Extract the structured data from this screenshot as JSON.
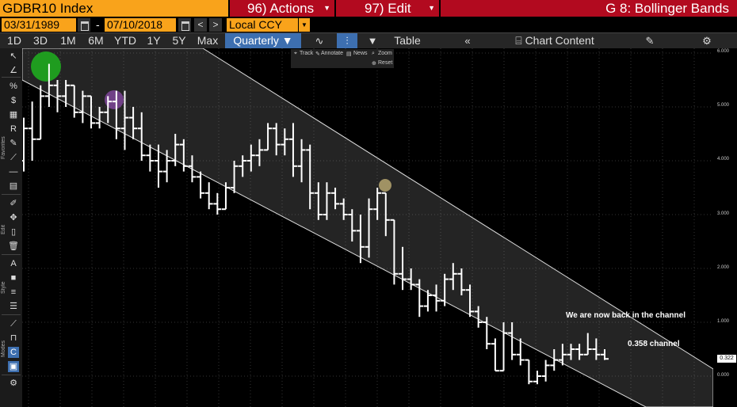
{
  "header": {
    "ticker": "GDBR10 Index",
    "actions_label": "96) Actions",
    "edit_label": "97) Edit",
    "graph_title": "G 8: Bollinger Bands"
  },
  "datebar": {
    "start_date": "03/31/1989",
    "end_date": "07/10/2018",
    "currency": "Local CCY"
  },
  "toolbar": {
    "ranges": [
      "1D",
      "3D",
      "1M",
      "6M",
      "YTD",
      "1Y",
      "5Y",
      "Max"
    ],
    "frequency": "Quarterly",
    "table_label": "Table",
    "chart_content_label": "Chart Content"
  },
  "mini_toolbar": {
    "track": "Track",
    "annotate": "Annotate",
    "news": "News",
    "zoom": "Zoom",
    "reset": "Reset"
  },
  "left_strip": {
    "labels": [
      "Favorites",
      "Edit",
      "Style",
      "Modes"
    ]
  },
  "annotations": {
    "channel_text": "We are now back in the channel",
    "width_text": "0.358 channel"
  },
  "y_axis": {
    "ticks": [
      "6.000",
      "5.000",
      "4.000",
      "3.000",
      "2.000",
      "1.000",
      "0.000"
    ],
    "last_price": "0.322"
  },
  "colors": {
    "ticker_bg": "#f9a31b",
    "title_bg": "#b20a1f",
    "selected_bg": "#3d6fb0",
    "highlight_green": "#1fb11f",
    "highlight_purple": "#8a4aa8",
    "highlight_yellow": "#c9b77a"
  },
  "chart_data": {
    "type": "bar",
    "title": "",
    "ylim": [
      -0.5,
      6.1
    ],
    "channel_width": 0.358,
    "grid": true,
    "ohlc": [
      [
        4.0,
        4.8,
        3.8,
        4.6
      ],
      [
        4.6,
        5.1,
        4.0,
        4.4
      ],
      [
        4.4,
        5.4,
        4.4,
        5.2
      ],
      [
        5.2,
        5.8,
        5.0,
        5.4
      ],
      [
        5.4,
        5.5,
        4.9,
        5.2
      ],
      [
        5.2,
        5.5,
        5.0,
        5.4
      ],
      [
        5.4,
        5.4,
        4.8,
        4.9
      ],
      [
        4.9,
        5.3,
        4.7,
        5.2
      ],
      [
        5.2,
        5.2,
        4.6,
        4.7
      ],
      [
        4.7,
        5.0,
        4.6,
        4.9
      ],
      [
        4.9,
        5.2,
        4.7,
        5.1
      ],
      [
        5.1,
        5.3,
        4.4,
        4.6
      ],
      [
        4.6,
        5.3,
        4.2,
        4.8
      ],
      [
        4.8,
        5.0,
        4.4,
        4.6
      ],
      [
        4.6,
        4.9,
        4.0,
        4.1
      ],
      [
        4.1,
        4.3,
        3.8,
        4.0
      ],
      [
        4.0,
        4.3,
        3.5,
        3.8
      ],
      [
        3.8,
        4.2,
        3.6,
        4.0
      ],
      [
        4.0,
        4.5,
        3.9,
        4.3
      ],
      [
        4.3,
        4.4,
        3.8,
        3.9
      ],
      [
        3.9,
        4.1,
        3.6,
        3.7
      ],
      [
        3.7,
        3.8,
        3.3,
        3.4
      ],
      [
        3.4,
        3.6,
        3.1,
        3.2
      ],
      [
        3.2,
        3.4,
        3.0,
        3.1
      ],
      [
        3.1,
        3.6,
        3.1,
        3.5
      ],
      [
        3.5,
        4.0,
        3.4,
        3.9
      ],
      [
        3.9,
        4.1,
        3.7,
        4.0
      ],
      [
        4.0,
        4.3,
        3.8,
        4.1
      ],
      [
        4.1,
        4.4,
        3.9,
        4.2
      ],
      [
        4.2,
        4.7,
        4.2,
        4.6
      ],
      [
        4.6,
        4.7,
        4.1,
        4.3
      ],
      [
        4.3,
        4.6,
        4.1,
        4.4
      ],
      [
        4.4,
        4.7,
        3.7,
        3.9
      ],
      [
        3.9,
        4.4,
        3.6,
        4.2
      ],
      [
        4.2,
        4.3,
        3.1,
        3.4
      ],
      [
        3.4,
        3.6,
        2.9,
        3.0
      ],
      [
        3.0,
        3.6,
        2.9,
        3.4
      ],
      [
        3.4,
        3.5,
        3.1,
        3.2
      ],
      [
        3.2,
        3.3,
        2.9,
        3.0
      ],
      [
        3.0,
        3.1,
        2.5,
        2.7
      ],
      [
        2.7,
        3.0,
        2.1,
        2.4
      ],
      [
        2.4,
        3.3,
        2.2,
        3.1
      ],
      [
        3.1,
        3.5,
        2.9,
        3.4
      ],
      [
        3.4,
        3.4,
        2.6,
        2.9
      ],
      [
        2.9,
        2.9,
        1.7,
        1.9
      ],
      [
        1.9,
        2.4,
        1.6,
        1.8
      ],
      [
        1.8,
        2.0,
        1.6,
        1.7
      ],
      [
        1.7,
        1.8,
        1.1,
        1.3
      ],
      [
        1.3,
        1.6,
        1.2,
        1.5
      ],
      [
        1.5,
        1.7,
        1.2,
        1.4
      ],
      [
        1.4,
        1.9,
        1.3,
        1.8
      ],
      [
        1.8,
        2.1,
        1.6,
        1.9
      ],
      [
        1.9,
        2.0,
        1.5,
        1.6
      ],
      [
        1.6,
        1.7,
        1.1,
        1.2
      ],
      [
        1.2,
        1.3,
        0.9,
        1.0
      ],
      [
        1.0,
        1.1,
        0.5,
        0.6
      ],
      [
        0.6,
        0.7,
        0.1,
        0.1
      ],
      [
        0.1,
        1.0,
        0.1,
        0.8
      ],
      [
        0.8,
        1.0,
        0.3,
        0.4
      ],
      [
        0.4,
        0.7,
        0.2,
        0.3
      ],
      [
        0.3,
        0.3,
        -0.15,
        -0.1
      ],
      [
        -0.1,
        0.1,
        -0.15,
        0.0
      ],
      [
        0.0,
        0.3,
        -0.1,
        0.2
      ],
      [
        0.2,
        0.5,
        0.1,
        0.3
      ],
      [
        0.3,
        0.6,
        0.2,
        0.4
      ],
      [
        0.4,
        0.6,
        0.3,
        0.5
      ],
      [
        0.5,
        0.6,
        0.3,
        0.4
      ],
      [
        0.4,
        0.8,
        0.4,
        0.5
      ],
      [
        0.5,
        0.7,
        0.3,
        0.4
      ],
      [
        0.4,
        0.5,
        0.3,
        0.32
      ]
    ]
  }
}
